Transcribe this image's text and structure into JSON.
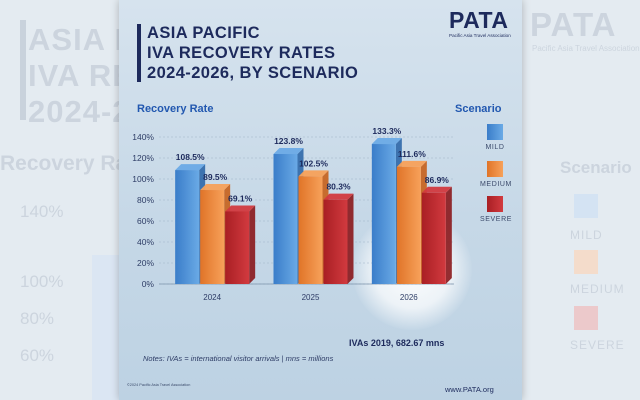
{
  "title_lines": [
    "ASIA PACIFIC",
    "IVA RECOVERY RATES",
    "2024-2026, BY SCENARIO"
  ],
  "logo": {
    "word": "PATA",
    "tagline": "Pacific Asia Travel Association"
  },
  "y_axis_title": "Recovery Rate",
  "legend_title": "Scenario",
  "footnote": "Notes: IVAs = international visitor arrivals | mns = millions",
  "baseline": "IVAs 2019, 682.67 mns",
  "url": "www.PATA.org",
  "copyright": "©2024 Pacific Asia Travel Association",
  "colors": {
    "mild": "#4a90d9",
    "medium": "#f08a3c",
    "severe": "#c0282d",
    "title": "#1d2a5c",
    "accent": "#2258b0"
  },
  "chart_data": {
    "type": "bar",
    "ylabel": "Recovery Rate",
    "ylim": [
      0,
      140
    ],
    "yticks": [
      "0%",
      "20%",
      "40%",
      "60%",
      "80%",
      "100%",
      "120%",
      "140%"
    ],
    "categories": [
      "2024",
      "2025",
      "2026"
    ],
    "series": [
      {
        "name": "MILD",
        "values": [
          108.5,
          123.8,
          133.3
        ],
        "labels": [
          "108.5%",
          "123.8%",
          "133.3%"
        ]
      },
      {
        "name": "MEDIUM",
        "values": [
          89.5,
          102.5,
          111.6
        ],
        "labels": [
          "89.5%",
          "102.5%",
          "111.6%"
        ]
      },
      {
        "name": "SEVERE",
        "values": [
          69.1,
          80.3,
          86.9
        ],
        "labels": [
          "69.1%",
          "80.3%",
          "86.9%"
        ]
      }
    ],
    "legend_position": "right",
    "grid": true
  }
}
